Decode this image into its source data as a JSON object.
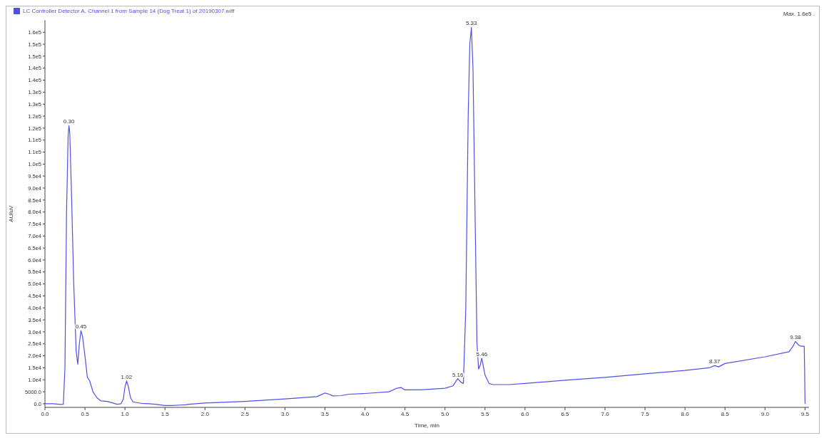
{
  "chart_data": {
    "type": "line",
    "xlabel": "Time, min",
    "ylabel": "AU/uV",
    "legend": "top left",
    "marker": "none",
    "line_style": "solid",
    "grid": false,
    "annotations": [
      "Max. 1.6e5 .",
      {
        "text": "0.30",
        "x": 0.3,
        "y": 116000
      },
      {
        "text": "0.45",
        "x": 0.45,
        "y": 30500
      },
      {
        "text": "1.02",
        "x": 1.02,
        "y": 9500
      },
      {
        "text": "5.16",
        "x": 5.16,
        "y": 10500
      },
      {
        "text": "5.33",
        "x": 5.33,
        "y": 157000
      },
      {
        "text": "5.46",
        "x": 5.46,
        "y": 19000
      },
      {
        "text": "8.37",
        "x": 8.37,
        "y": 15900
      },
      {
        "text": "9.38",
        "x": 9.38,
        "y": 26000
      }
    ],
    "xlim": [
      0,
      9.55
    ],
    "ylim": [
      -1500,
      160000
    ],
    "xticks": [
      {
        "value": 0,
        "label": "0.0"
      },
      {
        "value": 0.5,
        "label": "0.5"
      },
      {
        "value": 1,
        "label": "1.0"
      },
      {
        "value": 1.5,
        "label": "1.5"
      },
      {
        "value": 2,
        "label": "2.0"
      },
      {
        "value": 2.5,
        "label": "2.5"
      },
      {
        "value": 3,
        "label": "3.0"
      },
      {
        "value": 3.5,
        "label": "3.5"
      },
      {
        "value": 4,
        "label": "4.0"
      },
      {
        "value": 4.5,
        "label": "4.5"
      },
      {
        "value": 5,
        "label": "5.0"
      },
      {
        "value": 5.5,
        "label": "5.5"
      },
      {
        "value": 6,
        "label": "6.0"
      },
      {
        "value": 6.5,
        "label": "6.5"
      },
      {
        "value": 7,
        "label": "7.0"
      },
      {
        "value": 7.5,
        "label": "7.5"
      },
      {
        "value": 8,
        "label": "8.0"
      },
      {
        "value": 8.5,
        "label": "8.5"
      },
      {
        "value": 9,
        "label": "9.0"
      },
      {
        "value": 9.5,
        "label": "9.5"
      }
    ],
    "yticks": [
      {
        "value": 0,
        "label": "0.0"
      },
      {
        "value": 5000,
        "label": "5000.0"
      },
      {
        "value": 10000,
        "label": "1.0e4"
      },
      {
        "value": 15000,
        "label": "1.5e4"
      },
      {
        "value": 20000,
        "label": "2.0e4"
      },
      {
        "value": 25000,
        "label": "2.5e4"
      },
      {
        "value": 30000,
        "label": "3.0e4"
      },
      {
        "value": 35000,
        "label": "3.5e4"
      },
      {
        "value": 40000,
        "label": "4.0e4"
      },
      {
        "value": 45000,
        "label": "4.5e4"
      },
      {
        "value": 50000,
        "label": "5.0e4"
      },
      {
        "value": 55000,
        "label": "5.5e4"
      },
      {
        "value": 60000,
        "label": "6.0e4"
      },
      {
        "value": 65000,
        "label": "6.5e4"
      },
      {
        "value": 70000,
        "label": "7.0e4"
      },
      {
        "value": 75000,
        "label": "7.5e4"
      },
      {
        "value": 80000,
        "label": "8.0e4"
      },
      {
        "value": 85000,
        "label": "8.5e4"
      },
      {
        "value": 90000,
        "label": "9.0e4"
      },
      {
        "value": 95000,
        "label": "9.5e4"
      },
      {
        "value": 100000,
        "label": "1.0e5"
      },
      {
        "value": 105000,
        "label": "1.1e5"
      },
      {
        "value": 110000,
        "label": "1.1e5"
      },
      {
        "value": 115000,
        "label": "1.2e5"
      },
      {
        "value": 120000,
        "label": "1.2e5"
      },
      {
        "value": 125000,
        "label": "1.3e5"
      },
      {
        "value": 130000,
        "label": "1.3e5"
      },
      {
        "value": 135000,
        "label": "1.4e5"
      },
      {
        "value": 140000,
        "label": "1.4e5"
      },
      {
        "value": 145000,
        "label": "1.5e5"
      },
      {
        "value": 150000,
        "label": "1.5e5"
      },
      {
        "value": 155000,
        "label": "1.6e5"
      }
    ],
    "series": [
      {
        "name": "LC Controller Detector A, Channel 1 from Sample 14 (Dog Treat 1) of 20190307.wiff",
        "color": "#5050e8",
        "x": [
          0,
          0.1,
          0.2,
          0.23,
          0.25,
          0.27,
          0.29,
          0.3,
          0.31,
          0.33,
          0.36,
          0.39,
          0.41,
          0.43,
          0.45,
          0.47,
          0.5,
          0.53,
          0.56,
          0.6,
          0.65,
          0.7,
          0.78,
          0.85,
          0.9,
          0.95,
          0.98,
          1.0,
          1.02,
          1.04,
          1.07,
          1.1,
          1.2,
          1.3,
          1.4,
          1.5,
          1.6,
          1.75,
          1.8,
          2.0,
          2.5,
          3.0,
          3.4,
          3.5,
          3.55,
          3.6,
          3.7,
          3.8,
          4.0,
          4.3,
          4.4,
          4.45,
          4.5,
          4.7,
          5.0,
          5.1,
          5.16,
          5.2,
          5.23,
          5.26,
          5.29,
          5.31,
          5.33,
          5.35,
          5.38,
          5.4,
          5.42,
          5.44,
          5.46,
          5.5,
          5.55,
          5.6,
          5.8,
          6.0,
          6.5,
          7.0,
          7.5,
          8.0,
          8.3,
          8.37,
          8.42,
          8.5,
          9.0,
          9.3,
          9.35,
          9.38,
          9.42,
          9.45,
          9.49,
          9.495,
          9.5
        ],
        "values": [
          0,
          0,
          -300,
          -200,
          15000,
          80000,
          112000,
          116000,
          113000,
          90000,
          50000,
          22000,
          16500,
          25000,
          30500,
          28000,
          20000,
          11000,
          9500,
          5000,
          2500,
          1200,
          1000,
          300,
          -200,
          0,
          2000,
          7000,
          9500,
          7500,
          2500,
          800,
          200,
          0,
          -300,
          -700,
          -700,
          -400,
          -200,
          300,
          1000,
          2000,
          3000,
          4500,
          4000,
          3300,
          3400,
          4000,
          4300,
          5000,
          6500,
          6800,
          5800,
          5800,
          6500,
          7500,
          10500,
          9000,
          8500,
          40000,
          120000,
          150000,
          157000,
          140000,
          70000,
          25000,
          14500,
          16000,
          19000,
          12000,
          8500,
          8000,
          8000,
          8500,
          9800,
          11000,
          12500,
          13900,
          15000,
          15900,
          15400,
          16800,
          19600,
          21700,
          24000,
          26000,
          24500,
          24000,
          24000,
          14000,
          0
        ]
      }
    ]
  }
}
